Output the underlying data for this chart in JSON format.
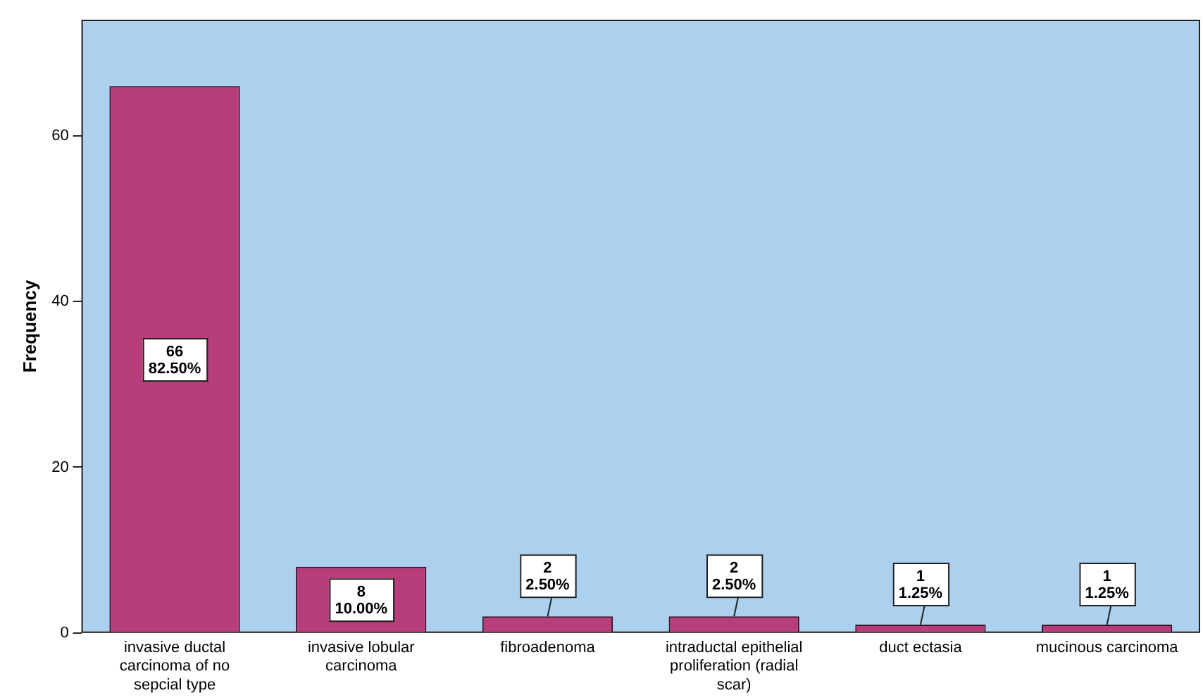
{
  "chart_data": {
    "type": "bar",
    "ylabel": "Frequency",
    "categories": [
      "invasive ductal carcinoma of no sepcial type",
      "invasive lobular carcinoma",
      "fibroadenoma",
      "intraductal epithelial proliferation (radial scar)",
      "duct ectasia",
      "mucinous carcinoma"
    ],
    "values": [
      66,
      8,
      2,
      2,
      1,
      1
    ],
    "value_labels": [
      "66\n82.50%",
      "8\n10.00%",
      "2\n2.50%",
      "2\n2.50%",
      "1\n1.25%",
      "1\n1.25%"
    ],
    "color": "#b83d7b",
    "ylim": [
      0,
      74
    ],
    "yticks": [
      0,
      20,
      40,
      60
    ],
    "grid": false,
    "legend": false
  }
}
